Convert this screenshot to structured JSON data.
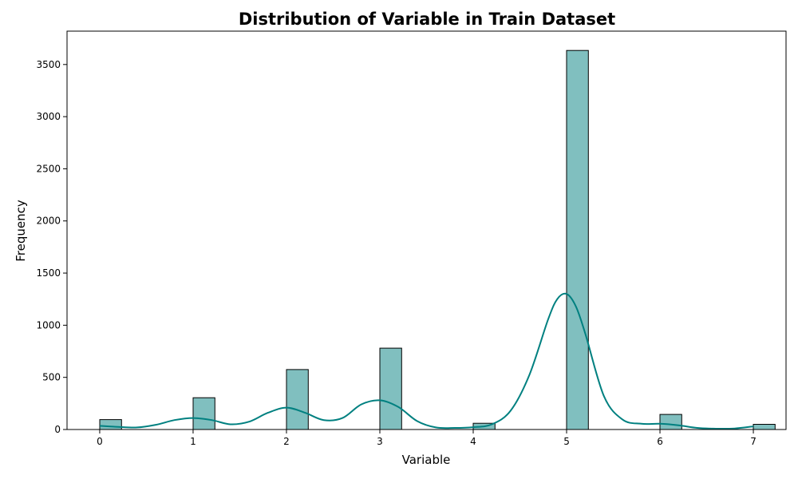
{
  "chart_data": {
    "type": "bar",
    "title": "Distribution of Variable in Train Dataset",
    "xlabel": "Variable",
    "ylabel": "Frequency",
    "xlim": [
      -0.35,
      7.35
    ],
    "ylim": [
      0,
      3820
    ],
    "xticks": [
      0,
      1,
      2,
      3,
      4,
      5,
      6,
      7
    ],
    "yticks": [
      0,
      500,
      1000,
      1500,
      2000,
      2500,
      3000,
      3500
    ],
    "bin_width": 0.2333,
    "categories": [
      "0",
      "1",
      "2",
      "3",
      "4",
      "5",
      "6",
      "7"
    ],
    "x": [
      0,
      1,
      2,
      3,
      4,
      5,
      6,
      7
    ],
    "values": [
      95,
      305,
      575,
      780,
      60,
      3635,
      145,
      50
    ],
    "kde": {
      "x": [
        0,
        0.2,
        0.4,
        0.6,
        0.8,
        1.0,
        1.2,
        1.4,
        1.6,
        1.8,
        2.0,
        2.2,
        2.4,
        2.6,
        2.8,
        3.0,
        3.2,
        3.4,
        3.6,
        3.8,
        4.0,
        4.2,
        4.4,
        4.6,
        4.8,
        4.9,
        5.0,
        5.1,
        5.2,
        5.4,
        5.6,
        5.8,
        6.0,
        6.2,
        6.4,
        6.6,
        6.8,
        7.0
      ],
      "y": [
        35,
        25,
        20,
        45,
        90,
        110,
        90,
        50,
        75,
        160,
        210,
        160,
        90,
        110,
        240,
        280,
        215,
        80,
        20,
        15,
        22,
        50,
        180,
        520,
        1050,
        1250,
        1300,
        1180,
        920,
        320,
        95,
        55,
        55,
        40,
        15,
        8,
        10,
        30
      ]
    },
    "colors": {
      "bar_fill": "#80bfbf",
      "kde_line": "#008080"
    }
  }
}
